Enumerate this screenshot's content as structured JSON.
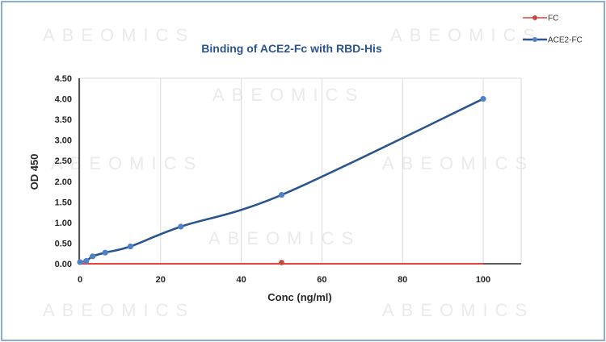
{
  "watermark": "ABEOMICS",
  "chart_data": {
    "type": "line",
    "title": "Binding of ACE2-Fc with RBD-His",
    "xlabel": "Conc (ng/ml)",
    "ylabel": "OD 450",
    "xlim": [
      0,
      100
    ],
    "ylim": [
      0,
      4.5
    ],
    "x_ticks": [
      "0",
      "20",
      "40",
      "60",
      "80",
      "100"
    ],
    "y_ticks": [
      "0.00",
      "0.50",
      "1.00",
      "1.50",
      "2.00",
      "2.50",
      "3.00",
      "3.50",
      "4.00",
      "4.50"
    ],
    "grid": "vertical",
    "legend_position": "top-right",
    "series": [
      {
        "name": "FC",
        "color": "#e8413c",
        "marker_x": [
          50
        ],
        "marker_y": [
          0.03
        ],
        "line_x": [
          0,
          100
        ],
        "line_y": [
          0.0,
          0.0
        ]
      },
      {
        "name": "ACE2-FC",
        "color": "#2b558f",
        "marker_color": "#4f81c7",
        "x": [
          0,
          1.56,
          3.13,
          6.25,
          12.5,
          25,
          50,
          100
        ],
        "y": [
          0.04,
          0.07,
          0.18,
          0.27,
          0.42,
          0.9,
          1.67,
          4.0
        ]
      }
    ]
  }
}
